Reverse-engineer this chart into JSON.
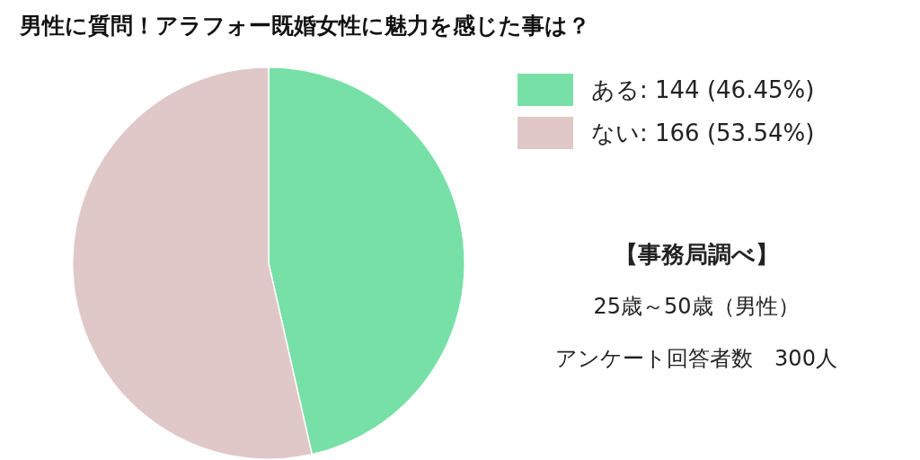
{
  "chart_data": {
    "type": "pie",
    "title": "男性に質問！アラフォー既婚女性に魅力を感じた事は？",
    "categories": [
      "ある: 144 (46.45%)",
      "ない: 166 (53.54%)"
    ],
    "values": [
      144,
      166
    ],
    "colors": [
      "#77e0a6",
      "#e0c8c8"
    ],
    "legend": "top right",
    "annotations": [
      "【事務局調べ】",
      "25歳～50歳（男性）",
      "アンケート回答者数　300人"
    ]
  }
}
